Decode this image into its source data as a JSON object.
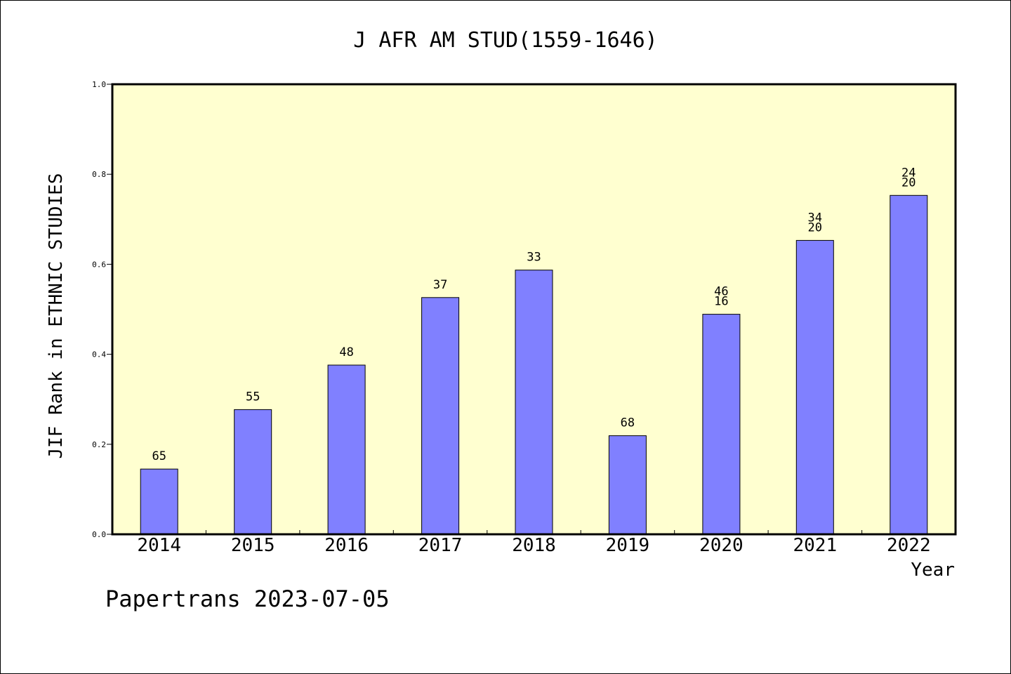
{
  "chart_data": {
    "type": "bar",
    "title": "J AFR AM STUD(1559-1646)",
    "xlabel": "Year",
    "ylabel": "JIF Rank in ETHNIC STUDIES",
    "ylim": [
      0,
      1.0
    ],
    "yticks": [
      "0.0",
      "0.2",
      "0.4",
      "0.6",
      "0.8",
      "1.0"
    ],
    "categories": [
      "2014",
      "2015",
      "2016",
      "2017",
      "2018",
      "2019",
      "2020",
      "2021",
      "2022"
    ],
    "values": [
      0.145,
      0.277,
      0.376,
      0.526,
      0.587,
      0.219,
      0.489,
      0.653,
      0.753
    ],
    "bar_labels": [
      [
        "65"
      ],
      [
        "55"
      ],
      [
        "48"
      ],
      [
        "37"
      ],
      [
        "33"
      ],
      [
        "68"
      ],
      [
        "46",
        "16"
      ],
      [
        "34",
        "20"
      ],
      [
        "24",
        "20"
      ]
    ],
    "grid": false,
    "colors": {
      "plot_background": "#ffffd0",
      "bar_fill": "#8080ff",
      "bar_edge": "#000000"
    }
  },
  "watermark": "Papertrans 2023-07-05"
}
